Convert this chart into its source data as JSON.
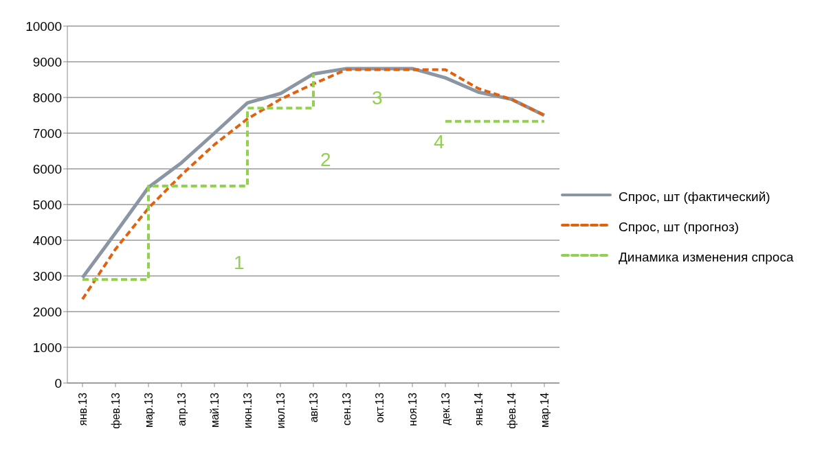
{
  "chart_data": {
    "type": "line",
    "categories": [
      "янв.13",
      "фев.13",
      "мар.13",
      "апр.13",
      "май.13",
      "июн.13",
      "июл.13",
      "авг.13",
      "сен.13",
      "окт.13",
      "ноя.13",
      "дек.13",
      "янв.14",
      "фев.14",
      "мар.14"
    ],
    "series": [
      {
        "name": "Спрос, шт (фактический)",
        "color": "#8a96a3",
        "line_style": "solid",
        "values": [
          2950,
          4200,
          5480,
          6170,
          7000,
          7850,
          8110,
          8660,
          8810,
          8810,
          8810,
          8550,
          8150,
          7950,
          7500
        ]
      },
      {
        "name": "Спрос, шт (прогноз)",
        "color": "#e0620e",
        "line_style": "dashed",
        "values": [
          2350,
          3750,
          4900,
          5830,
          6680,
          7400,
          7950,
          8380,
          8780,
          8780,
          8780,
          8780,
          8250,
          7950,
          7500
        ]
      },
      {
        "name": "Динамика изменения спроса",
        "type": "step",
        "color": "#92d050",
        "line_style": "dashed",
        "values": [
          2900,
          2900,
          5520,
          5520,
          5520,
          7700,
          7700,
          8660,
          null,
          null,
          null,
          7330,
          7330,
          7330,
          7330
        ]
      }
    ],
    "ylim": [
      0,
      10000
    ],
    "yticks": [
      0,
      1000,
      2000,
      3000,
      4000,
      5000,
      6000,
      7000,
      8000,
      9000,
      10000
    ],
    "grid": "y",
    "legend": "right",
    "marker": "none",
    "annotations": [
      "1",
      "2",
      "3",
      "4"
    ]
  }
}
